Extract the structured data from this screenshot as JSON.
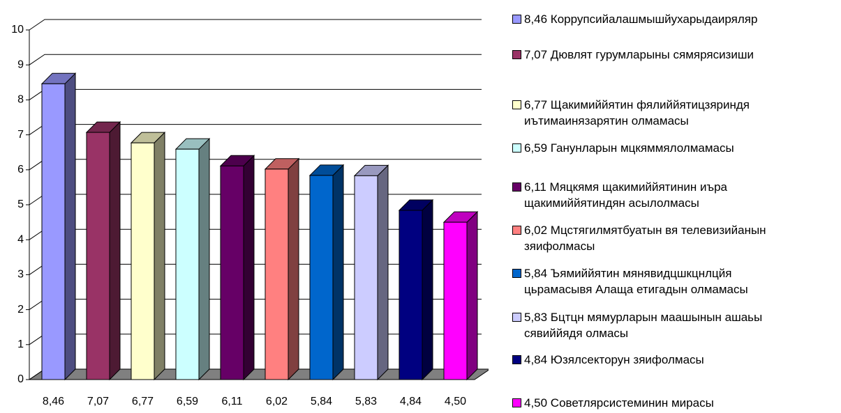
{
  "chart_data": {
    "type": "bar3d",
    "categories": [
      "8,46 Коррупсийалашмышйухарыдаиряляр",
      "7,07 Дювлят гурумларыны сямярясизиши",
      "6,77 Щакимиййятин фялиййятицзяриндя\nиътимаинязарятин олмамасы",
      "6,59 Ганунларын мцкяммялолмамасы",
      "6,11 Мяцкямя щакимиййятинин иъра\nщакимиййятиндян асылолмасы",
      "6,02 Мцстягилмятбуатын вя телевизийанын\nзяифолмасы",
      "5,84 Ъямиййятин мянявидцшкцнлцйя\nцьрамасывя Алаща етигадын олмамасы",
      "5,83 Бцтцн мямурларын маашынын ашаьы\nсявиййядя олмасы",
      "4,84 Юзялсекторун зяифолмасы",
      "4,50 Советлярсистеминин мирасы"
    ],
    "values": [
      8.46,
      7.07,
      6.77,
      6.59,
      6.11,
      6.02,
      5.84,
      5.83,
      4.84,
      4.5
    ],
    "value_labels": [
      "8,46",
      "7,07",
      "6,77",
      "6,59",
      "6,11",
      "6,02",
      "5,84",
      "5,83",
      "4,84",
      "4,50"
    ],
    "colors": [
      "#9999ff",
      "#993366",
      "#ffffcc",
      "#ccffff",
      "#660066",
      "#ff8080",
      "#0066cc",
      "#ccccff",
      "#000080",
      "#ff00ff"
    ],
    "ylim": [
      0,
      10
    ],
    "yticks": [
      0,
      1,
      2,
      3,
      4,
      5,
      6,
      7,
      8,
      9,
      10
    ],
    "grid": true
  }
}
